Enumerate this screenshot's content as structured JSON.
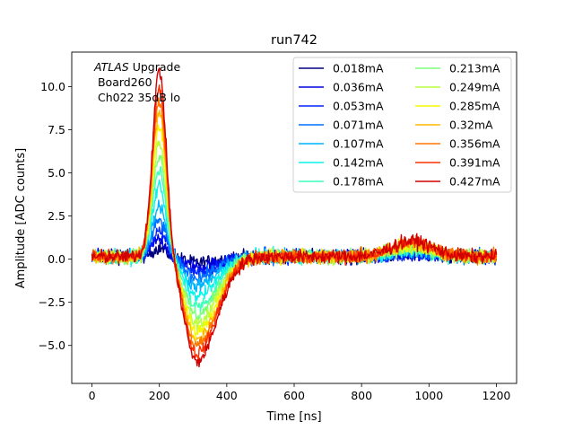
{
  "chart_data": {
    "type": "line",
    "title": "run742",
    "xlabel": "Time [ns]",
    "ylabel": "Amplitude [ADC counts]",
    "xlim": [
      -60,
      1260
    ],
    "ylim": [
      -7.2,
      12.0
    ],
    "xticks": [
      0,
      200,
      400,
      600,
      800,
      1000,
      1200
    ],
    "yticks": [
      -5.0,
      -2.5,
      0.0,
      2.5,
      5.0,
      7.5,
      10.0
    ],
    "xtick_labels": [
      "0",
      "200",
      "400",
      "600",
      "800",
      "1000",
      "1200"
    ],
    "ytick_labels": [
      "−5.0",
      "−2.5",
      "0.0",
      "2.5",
      "5.0",
      "7.5",
      "10.0"
    ],
    "grid": false,
    "legend": {
      "placement": "top-right",
      "columns": 2
    },
    "annotation": {
      "italic": "ATLAS",
      "rest": " Upgrade",
      "line2": " Board260",
      "line3": " Ch022 35dB lo"
    },
    "x_range_samples": [
      0,
      1200
    ],
    "series": [
      {
        "name": "0.018mA",
        "color": "#00007f",
        "peak": 0.5,
        "min": -0.35
      },
      {
        "name": "0.036mA",
        "color": "#0000e1",
        "peak": 1.0,
        "min": -0.6
      },
      {
        "name": "0.053mA",
        "color": "#0024ff",
        "peak": 1.5,
        "min": -0.9
      },
      {
        "name": "0.071mA",
        "color": "#0070ff",
        "peak": 2.1,
        "min": -1.2
      },
      {
        "name": "0.107mA",
        "color": "#00b4ff",
        "peak": 3.0,
        "min": -1.7
      },
      {
        "name": "0.142mA",
        "color": "#0cf4eb",
        "peak": 4.1,
        "min": -2.3
      },
      {
        "name": "0.178mA",
        "color": "#3dffba",
        "peak": 5.0,
        "min": -2.9
      },
      {
        "name": "0.213mA",
        "color": "#7bff7b",
        "peak": 5.9,
        "min": -3.4
      },
      {
        "name": "0.249mA",
        "color": "#baff3d",
        "peak": 6.7,
        "min": -3.9
      },
      {
        "name": "0.285mA",
        "color": "#f4f802",
        "peak": 7.5,
        "min": -4.4
      },
      {
        "name": "0.32mA",
        "color": "#ffb900",
        "peak": 8.3,
        "min": -4.8
      },
      {
        "name": "0.356mA",
        "color": "#ff7700",
        "peak": 9.0,
        "min": -5.2
      },
      {
        "name": "0.391mA",
        "color": "#ff3000",
        "peak": 9.9,
        "min": -5.6
      },
      {
        "name": "0.427mA",
        "color": "#d10000",
        "peak": 10.8,
        "min": -6.1
      }
    ]
  }
}
